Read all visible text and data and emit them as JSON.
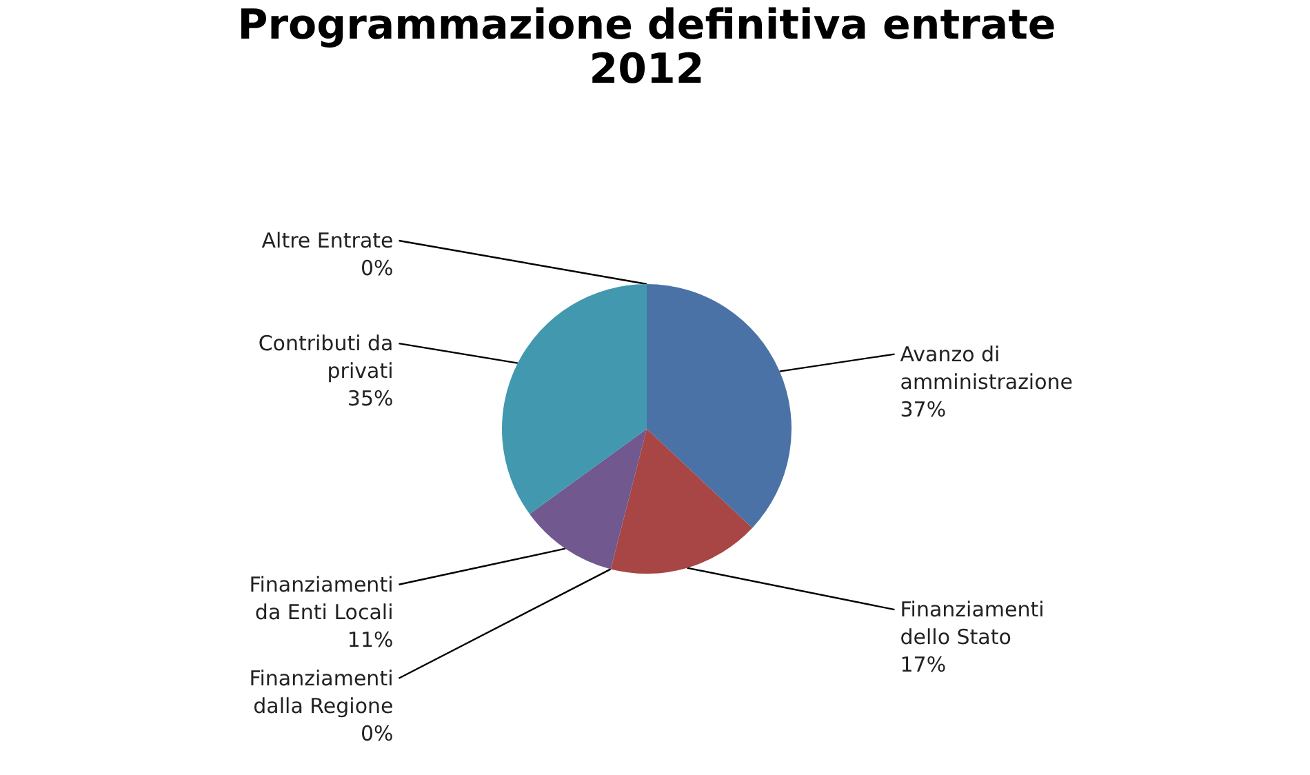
{
  "chart_data": {
    "type": "pie",
    "title": "Programmazione  definitiva entrate 2012",
    "categories": [
      "Avanzo di amministrazione",
      "Finanziamenti dello Stato",
      "Finanziamenti dalla Regione",
      "Finanziamenti da Enti Locali",
      "Contributi da privati",
      "Altre Entrate"
    ],
    "values": [
      37,
      17,
      0,
      11,
      35,
      0
    ],
    "value_labels": [
      "37%",
      "17%",
      "0%",
      "11%",
      "35%",
      "0%"
    ],
    "colors": [
      "#4a72a6",
      "#a74644",
      "#89a54e",
      "#71588f",
      "#4198af",
      "#db843d"
    ],
    "legend": false
  }
}
